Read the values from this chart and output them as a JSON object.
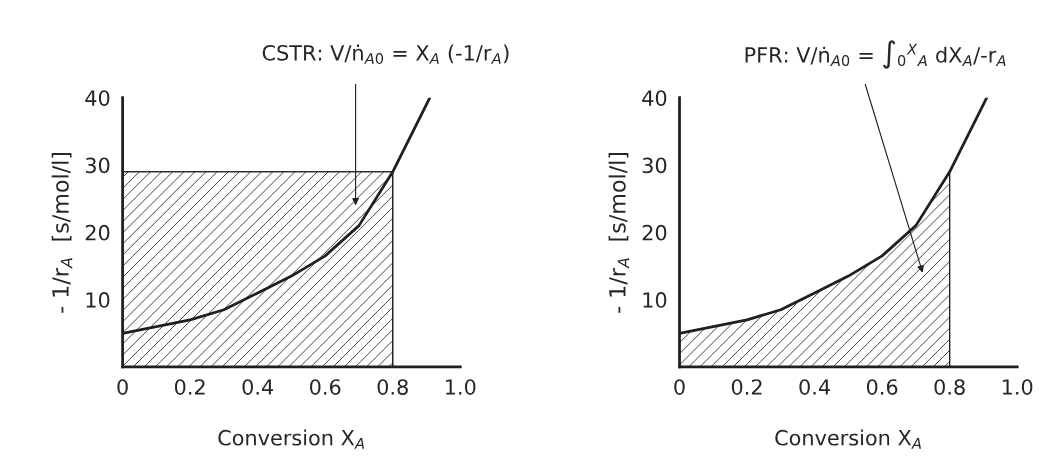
{
  "chart_data": [
    {
      "type": "line",
      "xlabel": "Conversion X$_{A}$",
      "ylabel": "- 1/r$_{A}$  [s/mol/l]",
      "xlim": [
        0,
        1.0
      ],
      "ylim": [
        0,
        40
      ],
      "xticks": [
        0,
        0.2,
        0.4,
        0.6,
        0.8,
        {
          "value": 1.0,
          "label": "1.0"
        }
      ],
      "yticks": [
        {
          "value": 0,
          "label": null
        },
        10,
        20,
        30,
        40
      ],
      "grid": false,
      "series": [
        {
          "type": "area",
          "color": "#231f20",
          "x": [
            0,
            0.8
          ],
          "values": [
            29,
            29
          ]
        },
        {
          "type": "line",
          "color": "#231f20",
          "x": [
            0,
            0.1,
            0.2,
            0.3,
            0.4,
            0.5,
            0.6,
            0.7,
            0.8,
            0.85,
            0.91
          ],
          "values": [
            5,
            6,
            7,
            8.5,
            11,
            13.5,
            16.5,
            21,
            29,
            34,
            40
          ]
        }
      ],
      "annotations": [
        "CSTR: V/ṅ$_{A0}$ = X$_{A}$ (-1/r$_{A}$)"
      ]
    },
    {
      "type": "line",
      "xlabel": "Conversion X$_{A}$",
      "ylabel": "- 1/r$_{A}$  [s/mol/l]",
      "xlim": [
        0,
        1.0
      ],
      "ylim": [
        0,
        40
      ],
      "xticks": [
        0,
        0.2,
        0.4,
        0.6,
        0.8,
        {
          "value": 1.0,
          "label": "1.0"
        }
      ],
      "yticks": [
        {
          "value": 0,
          "label": null
        },
        10,
        20,
        30,
        40
      ],
      "grid": false,
      "series": [
        {
          "type": "area",
          "color": "#231f20",
          "x": [
            0,
            0.1,
            0.2,
            0.3,
            0.4,
            0.5,
            0.6,
            0.7,
            0.8
          ],
          "values": [
            5,
            6,
            7,
            8.5,
            11,
            13.5,
            16.5,
            21,
            29
          ]
        },
        {
          "type": "line",
          "color": "#231f20",
          "x": [
            0,
            0.1,
            0.2,
            0.3,
            0.4,
            0.5,
            0.6,
            0.7,
            0.8,
            0.85,
            0.91
          ],
          "values": [
            5,
            6,
            7,
            8.5,
            11,
            13.5,
            16.5,
            21,
            29,
            34,
            40
          ]
        }
      ],
      "annotations": [
        "PFR: V/ṅ$_{A0}$ = ∫$_{0}$$^{X}$$_{A}$ dX$_{A}$/-r$_{A}$"
      ]
    }
  ]
}
